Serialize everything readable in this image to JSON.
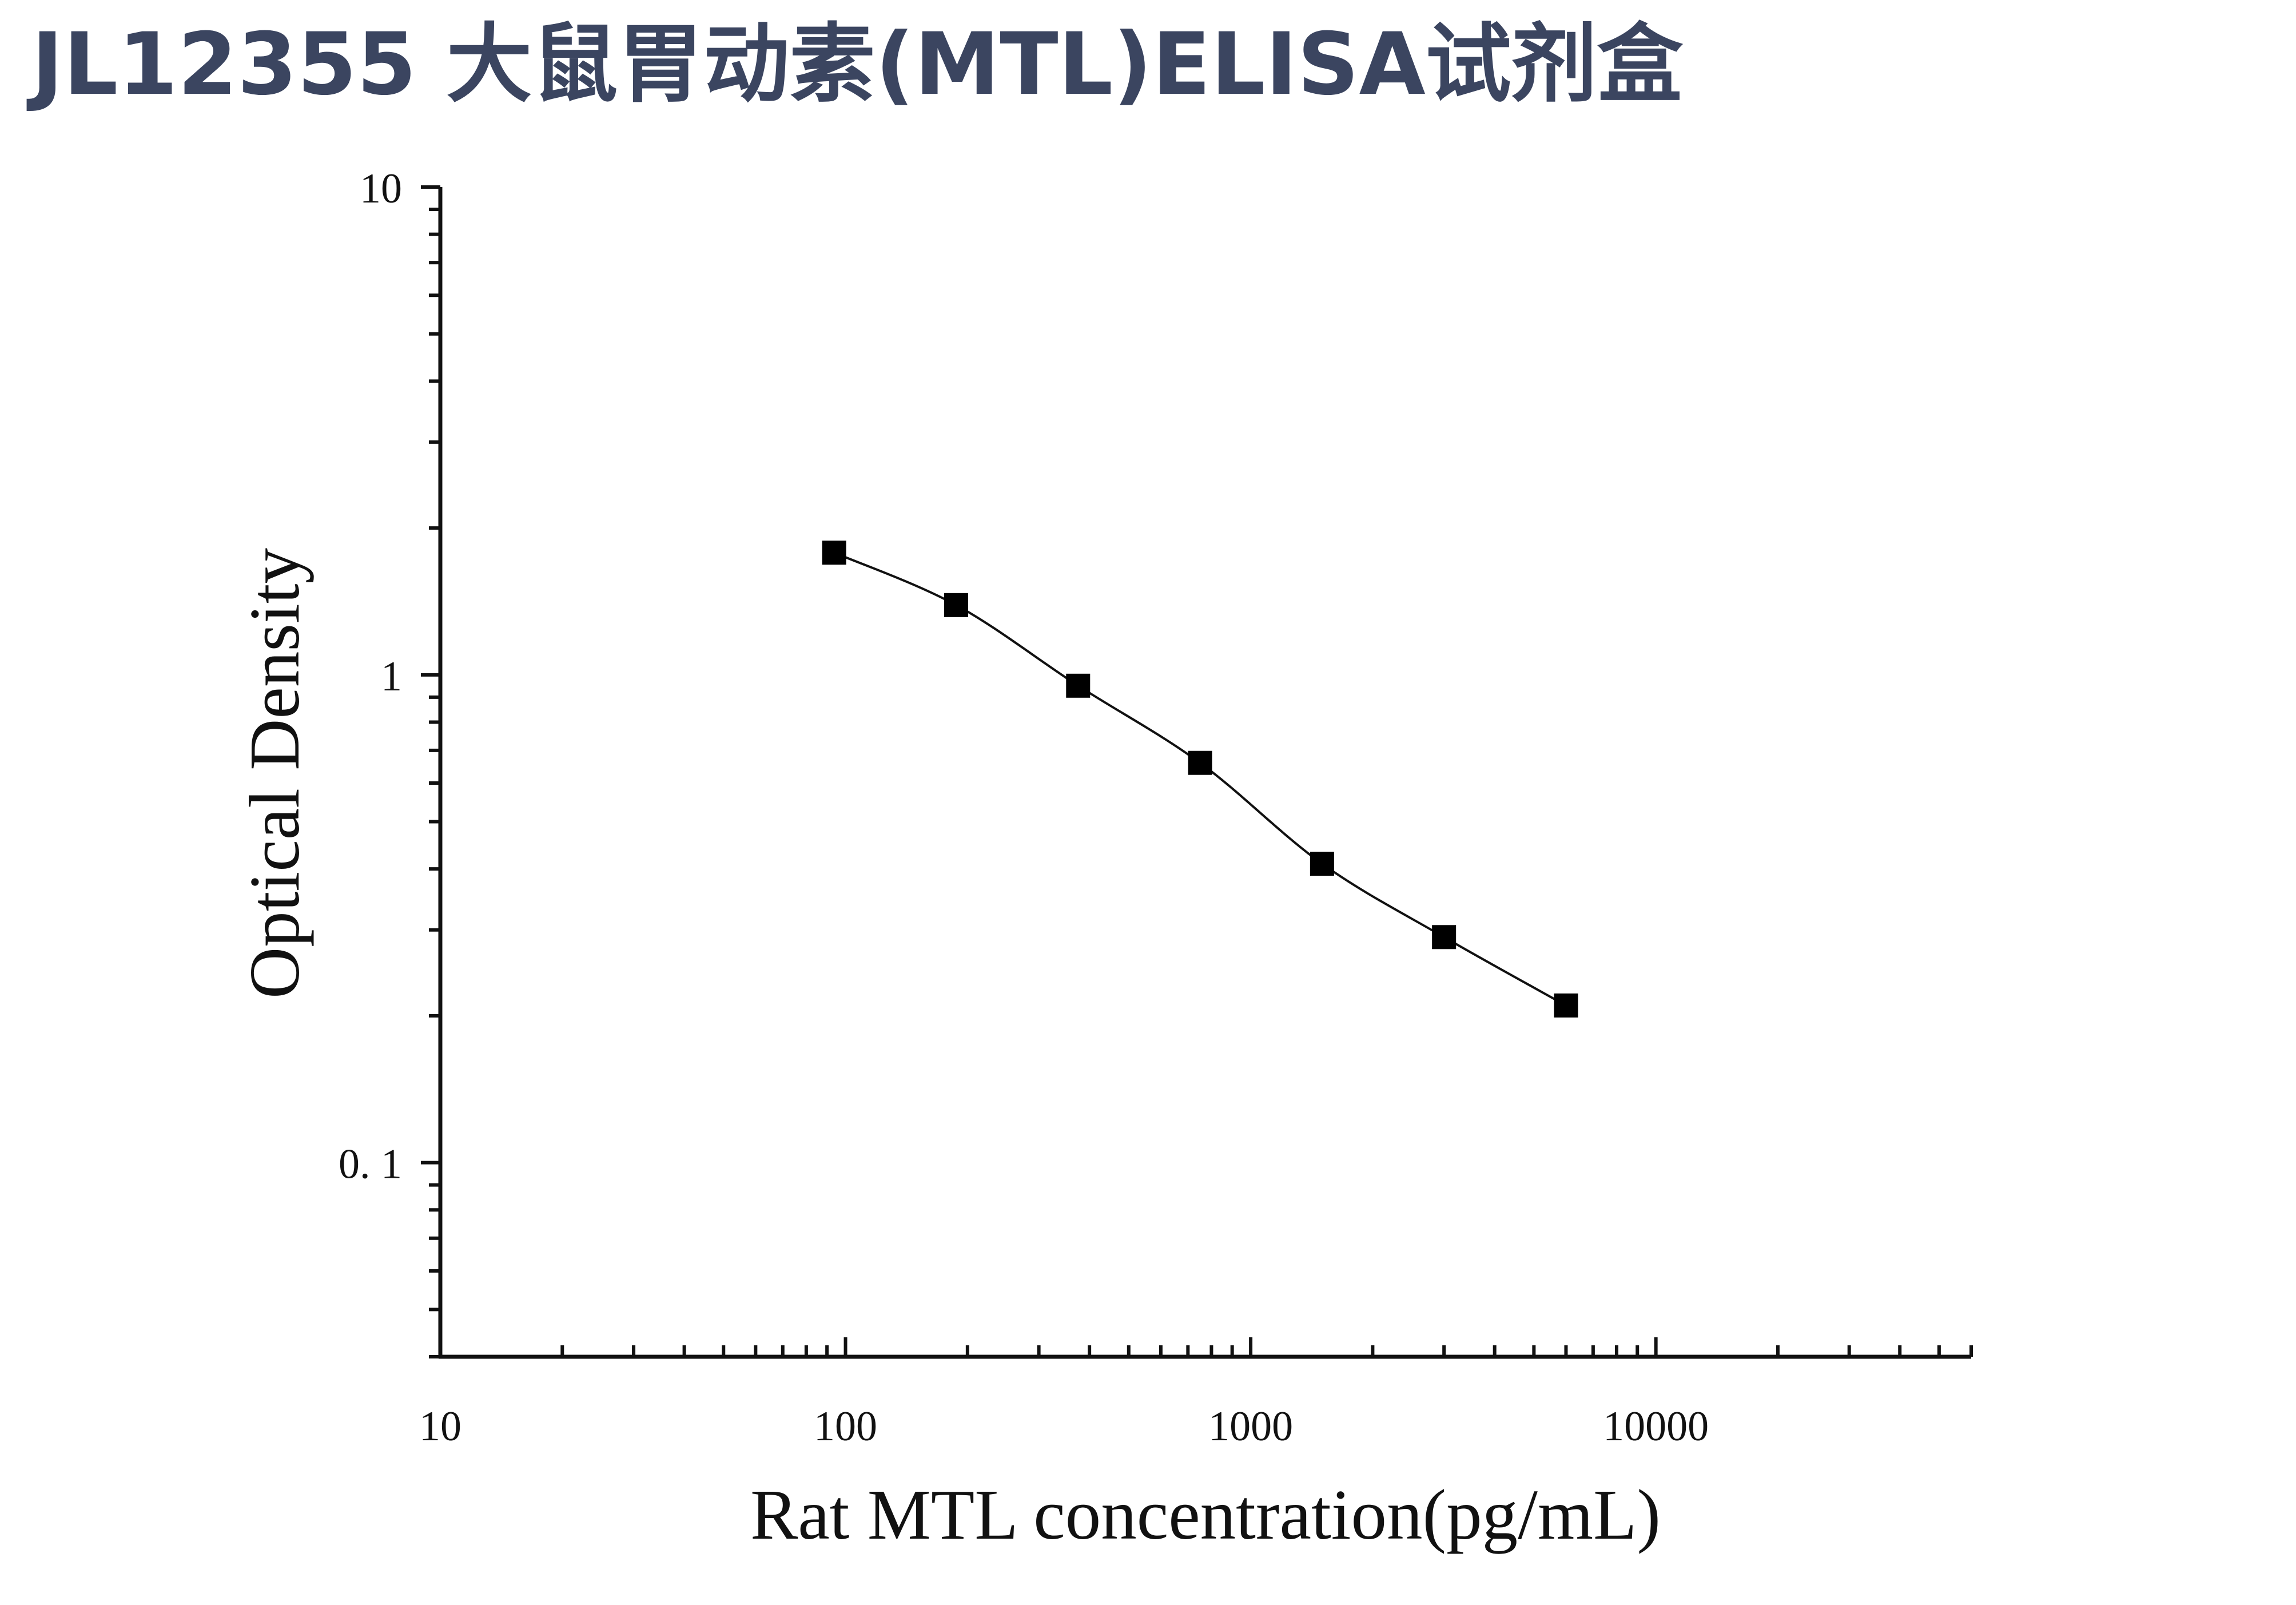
{
  "header": {
    "title": "JL12355 大鼠胃动素(MTL)ELISA试剂盒"
  },
  "colors": {
    "title": "#3b4560",
    "ink": "#111111"
  },
  "chart_data": {
    "type": "scatter",
    "xlabel": "Rat MTL concentration(pg/mL)",
    "ylabel": "Optical Density",
    "xscale": "log",
    "yscale": "log",
    "xlim": [
      10,
      60000
    ],
    "ylim": [
      0.04,
      10
    ],
    "x_tick_labels": [
      "10",
      "100",
      "1000",
      "10000"
    ],
    "y_tick_labels": [
      "10",
      "1",
      "0. 1"
    ],
    "grid": false,
    "legend": "none",
    "fit_curve": true,
    "series": [
      {
        "x": [
          93.75,
          187.5,
          375,
          750,
          1500,
          3000,
          6000
        ],
        "y": [
          1.78,
          1.39,
          0.95,
          0.66,
          0.41,
          0.29,
          0.21
        ]
      }
    ]
  }
}
